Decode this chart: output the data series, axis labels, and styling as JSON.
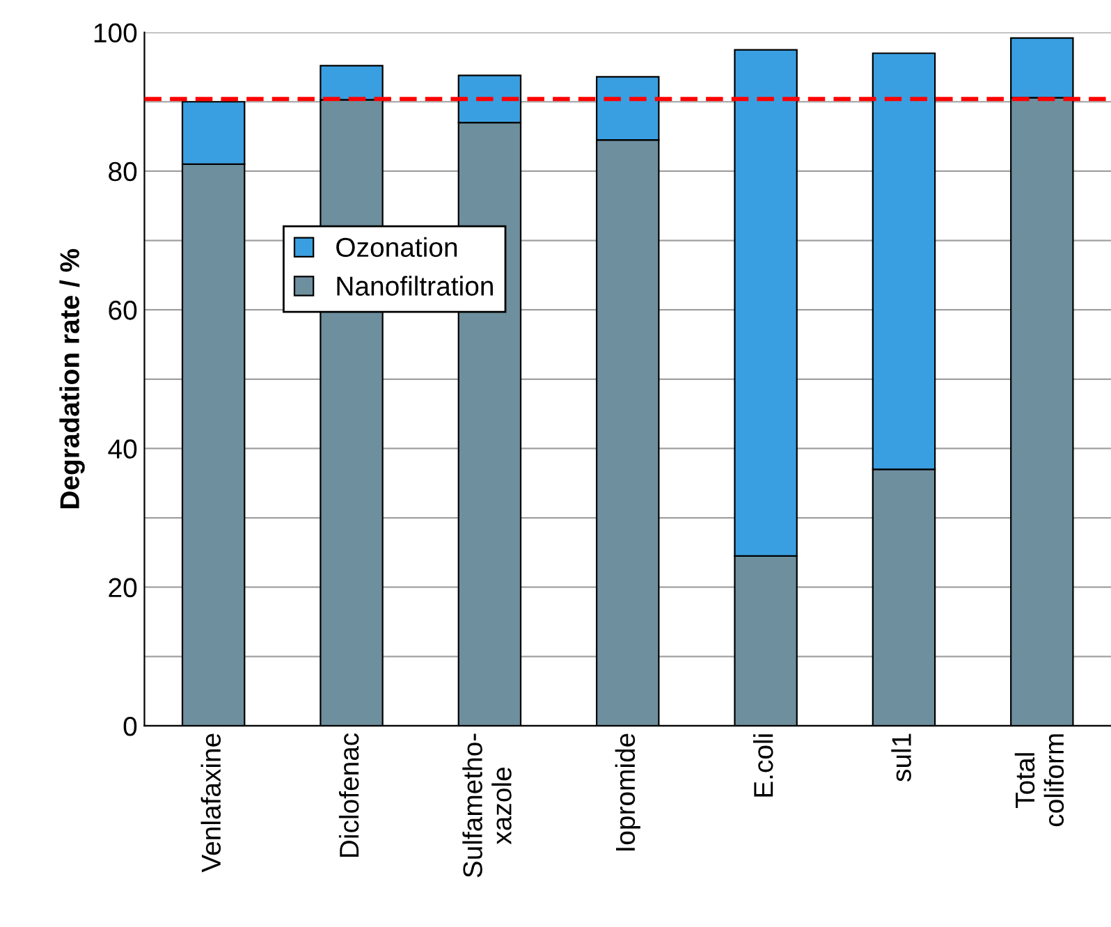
{
  "chart_data": {
    "type": "bar",
    "stacked": true,
    "ylabel": "Degradation rate / %",
    "categories": [
      "Venlafaxine",
      "Diclofenac",
      "Sulfametho-\nxazole",
      "Iopromide",
      "E.coli",
      "sul1",
      "Total\ncoliform"
    ],
    "series": [
      {
        "name": "Nanofiltration",
        "color": "#6e8f9e",
        "values": [
          81,
          90.3,
          87,
          84.5,
          24.5,
          37,
          90.6
        ]
      },
      {
        "name": "Ozonation",
        "color": "#3a9fe0",
        "values": [
          9,
          4.9,
          6.8,
          9.1,
          73,
          60,
          8.6
        ]
      }
    ],
    "ylim": [
      0,
      100
    ],
    "yticks": [
      0,
      {
        "value": 10,
        "label": null
      },
      20,
      {
        "value": 30,
        "label": null
      },
      40,
      {
        "value": 50,
        "label": null
      },
      60,
      {
        "value": 70,
        "label": null
      },
      80,
      {
        "value": 90,
        "label": null
      },
      100
    ],
    "grid": "y",
    "legend": "center left",
    "ref_lines": [
      {
        "axis": "y",
        "value": 90.4,
        "color": "#ff0000",
        "line_style": "dashed"
      }
    ]
  }
}
